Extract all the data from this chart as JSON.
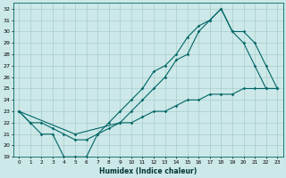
{
  "xlabel": "Humidex (Indice chaleur)",
  "background_color": "#cce8e8",
  "grid_color": "#aacccc",
  "line_color": "#006666",
  "xlim": [
    -0.5,
    23.5
  ],
  "ylim": [
    19,
    32.5
  ],
  "xticks": [
    0,
    1,
    2,
    3,
    4,
    5,
    6,
    7,
    8,
    9,
    10,
    11,
    12,
    13,
    14,
    15,
    16,
    17,
    18,
    19,
    20,
    21,
    22,
    23
  ],
  "yticks": [
    19,
    20,
    21,
    22,
    23,
    24,
    25,
    26,
    27,
    28,
    29,
    30,
    31,
    32
  ],
  "line1_x": [
    0,
    1,
    2,
    3,
    4,
    5,
    6,
    7,
    8,
    9,
    10,
    11,
    12,
    13,
    14,
    15,
    16,
    17,
    18,
    19,
    20,
    21,
    22,
    23
  ],
  "line1_y": [
    23,
    22,
    21,
    21,
    19,
    19,
    19,
    21,
    22,
    23,
    24,
    25,
    26.5,
    27,
    28,
    29.5,
    30.5,
    31,
    32,
    30,
    29,
    27,
    25,
    25
  ],
  "line2_x": [
    0,
    1,
    2,
    3,
    4,
    5,
    6,
    7,
    8,
    9,
    10,
    11,
    12,
    13,
    14,
    15,
    16,
    17,
    18,
    19,
    20,
    21,
    22,
    23
  ],
  "line2_y": [
    23,
    22,
    22,
    21.5,
    21,
    20.5,
    20.5,
    21,
    21.5,
    22,
    22,
    22.5,
    23,
    23,
    23.5,
    24,
    24,
    24.5,
    24.5,
    24.5,
    25,
    25,
    25,
    25
  ],
  "line3_x": [
    0,
    5,
    9,
    10,
    11,
    12,
    13,
    14,
    15,
    16,
    17,
    18,
    19,
    20,
    21,
    22,
    23
  ],
  "line3_y": [
    23,
    21,
    22,
    23,
    24,
    25,
    26,
    27.5,
    28,
    30,
    31,
    32,
    30,
    30,
    29,
    27,
    25
  ]
}
